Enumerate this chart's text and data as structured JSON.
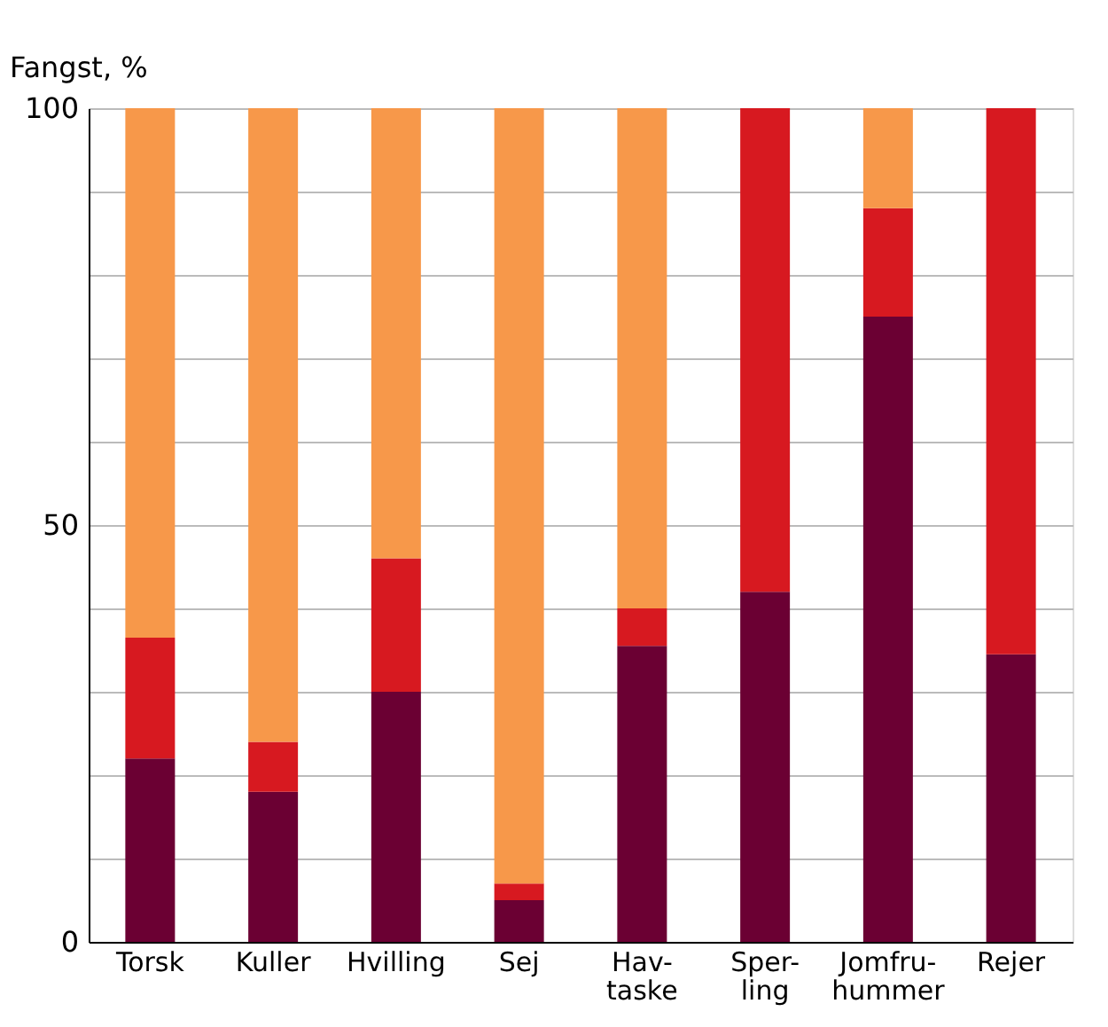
{
  "chart_data": {
    "type": "bar",
    "stacked": true,
    "ylabel": "Fangst, %",
    "categories": [
      "Torsk",
      "Kuller",
      "Hvilling",
      "Sej",
      "Hav-\ntaske",
      "Sper-\nling",
      "Jomfru-\nhummer",
      "Rejer"
    ],
    "series": [
      {
        "color": "#6b0033",
        "values": [
          22,
          18,
          30,
          5,
          35.5,
          42,
          75,
          34.5
        ]
      },
      {
        "color": "#d71920",
        "values": [
          14.5,
          6,
          16,
          2,
          4.5,
          58,
          13,
          65.5
        ]
      },
      {
        "color": "#f7984a",
        "values": [
          63.5,
          76,
          54,
          93,
          60,
          0,
          12,
          0
        ]
      }
    ],
    "ylim": [
      0,
      100
    ],
    "yticks": [
      0,
      {
        "value": 10,
        "label": null
      },
      {
        "value": 20,
        "label": null
      },
      {
        "value": 30,
        "label": null
      },
      {
        "value": 40,
        "label": null
      },
      50,
      {
        "value": 60,
        "label": null
      },
      {
        "value": 70,
        "label": null
      },
      {
        "value": 80,
        "label": null
      },
      {
        "value": 90,
        "label": null
      },
      100
    ],
    "grid": "y"
  }
}
